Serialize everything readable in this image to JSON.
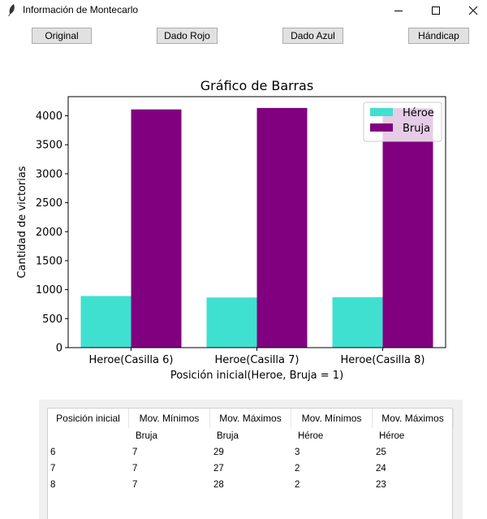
{
  "window": {
    "title": "Información de Montecarlo"
  },
  "toolbar": {
    "buttons": [
      "Original",
      "Dado Rojo",
      "Dado Azul",
      "Hándicap"
    ]
  },
  "colors": {
    "heroe": "#40e0d0",
    "bruja": "#800080"
  },
  "chart_data": {
    "type": "bar",
    "title": "Gráfico de Barras",
    "xlabel": "Posición inicial(Heroe, Bruja = 1)",
    "ylabel": "Cantidad de victorias",
    "categories": [
      "Heroe(Casilla 6)",
      "Heroe(Casilla 7)",
      "Heroe(Casilla 8)"
    ],
    "yticks": [
      0,
      500,
      1000,
      1500,
      2000,
      2500,
      3000,
      3500,
      4000
    ],
    "ylim": [
      0,
      4330
    ],
    "legend": "top-right",
    "series": [
      {
        "name": "Héroe",
        "values": [
          890,
          865,
          870
        ]
      },
      {
        "name": "Bruja",
        "values": [
          4110,
          4135,
          4130
        ]
      }
    ]
  },
  "table": {
    "headers": [
      "Posición inicial",
      "Mov. Mínimos",
      "Mov. Máximos",
      "Mov. Mínimos",
      "Mov. Máximos"
    ],
    "subheaders": [
      "",
      "Bruja",
      "Bruja",
      "Héroe",
      "Héroe"
    ],
    "rows": [
      [
        "6",
        "7",
        "29",
        "3",
        "25"
      ],
      [
        "7",
        "7",
        "27",
        "2",
        "24"
      ],
      [
        "8",
        "7",
        "28",
        "2",
        "23"
      ]
    ]
  }
}
